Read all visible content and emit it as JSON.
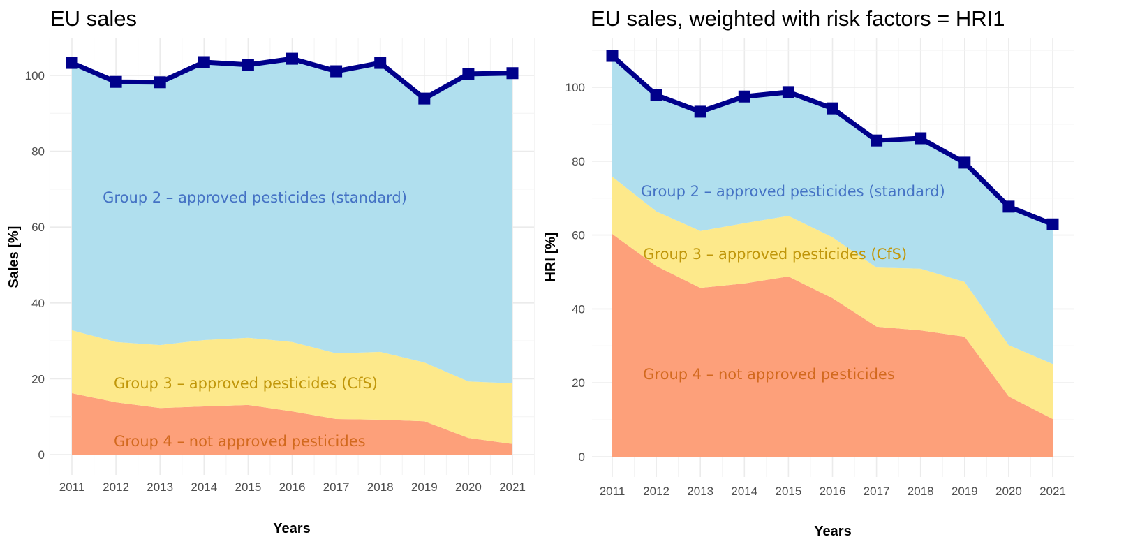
{
  "chart_data": [
    {
      "type": "area",
      "title": "EU sales",
      "xlabel": "Years",
      "ylabel": "Sales [%]",
      "x": [
        2011,
        2012,
        2013,
        2014,
        2015,
        2016,
        2017,
        2018,
        2019,
        2020,
        2021
      ],
      "x_tick_labels": [
        "2011",
        "2012",
        "2013",
        "2014",
        "2015",
        "2016",
        "2017",
        "2018",
        "2019",
        "2020",
        "2021"
      ],
      "y_ticks": [
        0,
        20,
        40,
        60,
        80,
        100
      ],
      "y_tick_labels": [
        "0",
        "20",
        "40",
        "60",
        "80",
        "100"
      ],
      "ylim": [
        -4,
        108
      ],
      "stacked": true,
      "grid": true,
      "series": [
        {
          "name": "Group 4 – not approved pesticides",
          "color": "#fda07a",
          "label_color": "#d2691e",
          "values": [
            16.2,
            13.8,
            12.3,
            12.7,
            13.1,
            11.4,
            9.4,
            9.2,
            8.8,
            4.4,
            2.8
          ]
        },
        {
          "name": "Group 3 – approved pesticides (CfS)",
          "color": "#fde98b",
          "label_color": "#c0960a",
          "values": [
            16.6,
            15.9,
            16.6,
            17.5,
            17.7,
            18.3,
            17.3,
            17.9,
            15.5,
            14.9,
            16.0
          ]
        },
        {
          "name": "Group 2 – approved pesticides (standard)",
          "color": "#b0dfee",
          "label_color": "#4472c4",
          "values": [
            70.5,
            68.6,
            69.3,
            73.3,
            72.0,
            74.7,
            74.4,
            76.2,
            69.6,
            81.1,
            81.8
          ]
        }
      ],
      "total_line": {
        "name": "Total",
        "color": "#00008b",
        "values": [
          103.3,
          98.3,
          98.2,
          103.5,
          102.8,
          104.4,
          101.1,
          103.3,
          93.9,
          100.4,
          100.6
        ]
      },
      "annotations": [
        {
          "text": "Group 2 – approved pesticides (standard)",
          "x": 2011.7,
          "y": 68,
          "color": "#4472c4"
        },
        {
          "text": "Group 3 – approved pesticides (CfS)",
          "x": 2011.95,
          "y": 19,
          "color": "#c0960a"
        },
        {
          "text": "Group 4 – not approved pesticides",
          "x": 2011.95,
          "y": 3.7,
          "color": "#d2691e"
        }
      ]
    },
    {
      "type": "area",
      "title": "EU sales, weighted with risk factors = HRI1",
      "xlabel": "Years",
      "ylabel": "HRI [%]",
      "x": [
        2011,
        2012,
        2013,
        2014,
        2015,
        2016,
        2017,
        2018,
        2019,
        2020,
        2021
      ],
      "x_tick_labels": [
        "2011",
        "2012",
        "2013",
        "2014",
        "2015",
        "2016",
        "2017",
        "2018",
        "2019",
        "2020",
        "2021"
      ],
      "y_ticks": [
        0,
        20,
        40,
        60,
        80,
        100
      ],
      "y_tick_labels": [
        "0",
        "20",
        "40",
        "60",
        "80",
        "100"
      ],
      "ylim": [
        -5,
        112
      ],
      "stacked": true,
      "grid": true,
      "series": [
        {
          "name": "Group 4 – not approved pesticides",
          "color": "#fda07a",
          "label_color": "#d2691e",
          "values": [
            60.3,
            51.6,
            45.7,
            46.9,
            48.8,
            42.9,
            35.2,
            34.2,
            32.5,
            16.3,
            10.2
          ]
        },
        {
          "name": "Group 3 – approved pesticides (CfS)",
          "color": "#fde98b",
          "label_color": "#c0960a",
          "values": [
            15.5,
            14.8,
            15.4,
            16.3,
            16.4,
            16.5,
            16.0,
            16.7,
            14.8,
            13.9,
            14.9
          ]
        },
        {
          "name": "Group 2 – approved pesticides (standard)",
          "color": "#b0dfee",
          "label_color": "#4472c4",
          "values": [
            32.7,
            31.5,
            32.3,
            34.3,
            33.5,
            34.9,
            34.4,
            35.3,
            32.3,
            37.5,
            37.8
          ]
        }
      ],
      "total_line": {
        "name": "Total",
        "color": "#00008b",
        "values": [
          108.5,
          97.9,
          93.4,
          97.5,
          98.7,
          94.3,
          85.6,
          86.2,
          79.6,
          67.7,
          62.9
        ]
      },
      "annotations": [
        {
          "text": "Group 2 – approved pesticides (standard)",
          "x": 2011.65,
          "y": 72,
          "color": "#4472c4"
        },
        {
          "text": "Group 3 – approved pesticides (CfS)",
          "x": 2011.7,
          "y": 55,
          "color": "#c0960a"
        },
        {
          "text": "Group 4 – not approved pesticides",
          "x": 2011.7,
          "y": 22.5,
          "color": "#d2691e"
        }
      ]
    }
  ]
}
